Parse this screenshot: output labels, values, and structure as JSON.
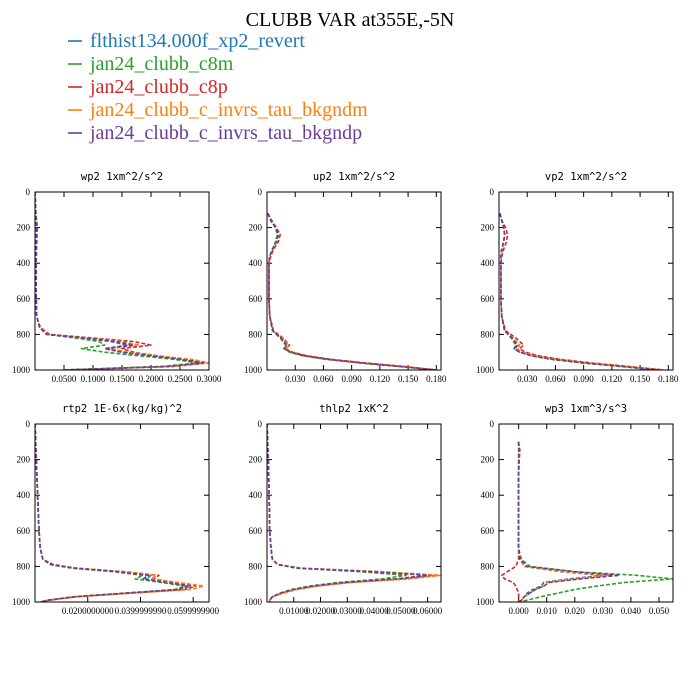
{
  "title": "CLUBB VAR at355E,-5N",
  "legend": [
    {
      "name": "flthist134.000f_xp2_revert",
      "color": "#1f77b4"
    },
    {
      "name": "jan24_clubb_c8m",
      "color": "#2ca02c"
    },
    {
      "name": "jan24_clubb_c8p",
      "color": "#d62728"
    },
    {
      "name": "jan24_clubb_c_invrs_tau_bkgndm",
      "color": "#ff7f0e"
    },
    {
      "name": "jan24_clubb_c_invrs_tau_bkgndp",
      "color": "#6a3d9a"
    }
  ],
  "chart_data": [
    {
      "type": "line",
      "title": "wp2  1xm^2/s^2",
      "xlim": [
        0,
        0.3
      ],
      "ylim": [
        1000,
        0
      ],
      "xticks": [
        0.05,
        0.1,
        0.15,
        0.2,
        0.25,
        0.3
      ],
      "xtick_labels": [
        "0.0500",
        "0.1000",
        "0.1500",
        "0.2000",
        "0.2500",
        "0.3000"
      ],
      "yticks": [
        0,
        200,
        400,
        600,
        800,
        1000
      ],
      "ytick_labels": [
        "0",
        "200",
        "400",
        "600",
        "800",
        "1000"
      ],
      "y": [
        0,
        100,
        200,
        300,
        400,
        500,
        600,
        700,
        760,
        800,
        820,
        840,
        860,
        880,
        900,
        920,
        940,
        960,
        980,
        1000
      ],
      "series": [
        {
          "name": "flthist134.000f_xp2_revert",
          "values": [
            0,
            0.001,
            0.003,
            0.002,
            0.002,
            0.002,
            0.002,
            0.003,
            0.008,
            0.02,
            0.08,
            0.13,
            0.16,
            0.12,
            0.15,
            0.2,
            0.25,
            0.29,
            0.23,
            0.05
          ]
        },
        {
          "name": "jan24_clubb_c8m",
          "values": [
            0,
            0.001,
            0.003,
            0.002,
            0.002,
            0.002,
            0.002,
            0.003,
            0.008,
            0.02,
            0.07,
            0.11,
            0.12,
            0.08,
            0.12,
            0.18,
            0.24,
            0.28,
            0.22,
            0.05
          ]
        },
        {
          "name": "jan24_clubb_c8p",
          "values": [
            0,
            0.001,
            0.004,
            0.003,
            0.002,
            0.002,
            0.002,
            0.003,
            0.009,
            0.025,
            0.1,
            0.17,
            0.2,
            0.15,
            0.17,
            0.21,
            0.26,
            0.3,
            0.24,
            0.05
          ]
        },
        {
          "name": "jan24_clubb_c_invrs_tau_bkgndm",
          "values": [
            0,
            0.001,
            0.003,
            0.002,
            0.002,
            0.002,
            0.002,
            0.003,
            0.008,
            0.022,
            0.09,
            0.15,
            0.18,
            0.13,
            0.16,
            0.21,
            0.27,
            0.3,
            0.24,
            0.05
          ]
        },
        {
          "name": "jan24_clubb_c_invrs_tau_bkgndp",
          "values": [
            0,
            0.001,
            0.003,
            0.002,
            0.002,
            0.002,
            0.002,
            0.003,
            0.008,
            0.02,
            0.085,
            0.14,
            0.17,
            0.12,
            0.15,
            0.2,
            0.25,
            0.29,
            0.23,
            0.05
          ]
        }
      ]
    },
    {
      "type": "line",
      "title": "up2  1xm^2/s^2",
      "xlim": [
        0,
        0.185
      ],
      "ylim": [
        1000,
        0
      ],
      "xticks": [
        0.03,
        0.06,
        0.09,
        0.12,
        0.15,
        0.18
      ],
      "xtick_labels": [
        "0.030",
        "0.060",
        "0.090",
        "0.120",
        "0.150",
        "0.180"
      ],
      "yticks": [
        0,
        200,
        400,
        600,
        800,
        1000
      ],
      "ytick_labels": [
        "0",
        "200",
        "400",
        "600",
        "800",
        "1000"
      ],
      "y": [
        120,
        160,
        200,
        240,
        280,
        320,
        360,
        400,
        500,
        600,
        700,
        780,
        820,
        860,
        880,
        900,
        920,
        940,
        960,
        980,
        1000
      ],
      "series": [
        {
          "name": "flthist134.000f_xp2_revert",
          "values": [
            0.001,
            0.004,
            0.009,
            0.012,
            0.01,
            0.006,
            0.003,
            0.002,
            0.002,
            0.002,
            0.003,
            0.006,
            0.015,
            0.022,
            0.019,
            0.025,
            0.04,
            0.065,
            0.1,
            0.14,
            0.18
          ]
        },
        {
          "name": "jan24_clubb_c8m",
          "values": [
            0.001,
            0.004,
            0.009,
            0.011,
            0.009,
            0.006,
            0.003,
            0.002,
            0.002,
            0.002,
            0.003,
            0.006,
            0.014,
            0.02,
            0.018,
            0.024,
            0.038,
            0.062,
            0.098,
            0.14,
            0.18
          ]
        },
        {
          "name": "jan24_clubb_c8p",
          "values": [
            0.001,
            0.005,
            0.01,
            0.014,
            0.012,
            0.007,
            0.004,
            0.002,
            0.002,
            0.002,
            0.003,
            0.007,
            0.017,
            0.024,
            0.02,
            0.027,
            0.043,
            0.068,
            0.104,
            0.145,
            0.18
          ]
        },
        {
          "name": "jan24_clubb_c_invrs_tau_bkgndm",
          "values": [
            0.001,
            0.004,
            0.009,
            0.012,
            0.01,
            0.006,
            0.003,
            0.002,
            0.002,
            0.002,
            0.003,
            0.006,
            0.016,
            0.023,
            0.02,
            0.026,
            0.042,
            0.067,
            0.103,
            0.145,
            0.18
          ]
        },
        {
          "name": "jan24_clubb_c_invrs_tau_bkgndp",
          "values": [
            0.001,
            0.004,
            0.009,
            0.012,
            0.01,
            0.006,
            0.003,
            0.002,
            0.002,
            0.002,
            0.003,
            0.006,
            0.015,
            0.021,
            0.018,
            0.025,
            0.04,
            0.064,
            0.1,
            0.14,
            0.18
          ]
        }
      ]
    },
    {
      "type": "line",
      "title": "vp2  1xm^2/s^2",
      "xlim": [
        0,
        0.185
      ],
      "ylim": [
        1000,
        0
      ],
      "xticks": [
        0.03,
        0.06,
        0.09,
        0.12,
        0.15,
        0.18
      ],
      "xtick_labels": [
        "0.030",
        "0.060",
        "0.090",
        "0.120",
        "0.150",
        "0.180"
      ],
      "yticks": [
        0,
        200,
        400,
        600,
        800,
        1000
      ],
      "ytick_labels": [
        "0",
        "200",
        "400",
        "600",
        "800",
        "1000"
      ],
      "y": [
        120,
        160,
        200,
        240,
        280,
        320,
        360,
        400,
        500,
        600,
        700,
        780,
        820,
        860,
        880,
        900,
        920,
        940,
        960,
        980,
        1000
      ],
      "series": [
        {
          "name": "flthist134.000f_xp2_revert",
          "values": [
            0.001,
            0.003,
            0.005,
            0.006,
            0.005,
            0.003,
            0.002,
            0.002,
            0.002,
            0.002,
            0.003,
            0.006,
            0.014,
            0.02,
            0.017,
            0.023,
            0.036,
            0.058,
            0.09,
            0.13,
            0.17
          ]
        },
        {
          "name": "jan24_clubb_c8m",
          "values": [
            0.001,
            0.003,
            0.005,
            0.006,
            0.005,
            0.003,
            0.002,
            0.002,
            0.002,
            0.002,
            0.003,
            0.006,
            0.013,
            0.018,
            0.016,
            0.022,
            0.034,
            0.055,
            0.088,
            0.128,
            0.17
          ]
        },
        {
          "name": "jan24_clubb_c8p",
          "values": [
            0.001,
            0.003,
            0.007,
            0.009,
            0.008,
            0.005,
            0.003,
            0.002,
            0.002,
            0.002,
            0.003,
            0.007,
            0.018,
            0.026,
            0.022,
            0.028,
            0.042,
            0.065,
            0.098,
            0.138,
            0.175
          ]
        },
        {
          "name": "jan24_clubb_c_invrs_tau_bkgndm",
          "values": [
            0.001,
            0.003,
            0.005,
            0.006,
            0.005,
            0.003,
            0.002,
            0.002,
            0.002,
            0.002,
            0.003,
            0.006,
            0.015,
            0.022,
            0.019,
            0.025,
            0.039,
            0.062,
            0.095,
            0.135,
            0.175
          ]
        },
        {
          "name": "jan24_clubb_c_invrs_tau_bkgndp",
          "values": [
            0.001,
            0.003,
            0.005,
            0.006,
            0.005,
            0.003,
            0.002,
            0.002,
            0.002,
            0.002,
            0.003,
            0.006,
            0.014,
            0.019,
            0.016,
            0.022,
            0.035,
            0.057,
            0.09,
            0.13,
            0.17
          ]
        }
      ]
    },
    {
      "type": "line",
      "title": "rtp2  1E-6x(kg/kg)^2",
      "xlim": [
        0,
        0.066
      ],
      "ylim": [
        1000,
        0
      ],
      "xticks": [
        0.02,
        0.04,
        0.06
      ],
      "xtick_labels": [
        "0.0200000000",
        "0.0399999990",
        "0.0599999900"
      ],
      "yticks": [
        0,
        200,
        400,
        600,
        800,
        1000
      ],
      "ytick_labels": [
        "0",
        "200",
        "400",
        "600",
        "800",
        "1000"
      ],
      "y": [
        0,
        200,
        400,
        600,
        700,
        760,
        790,
        810,
        830,
        850,
        870,
        890,
        910,
        930,
        950,
        970,
        990,
        1000
      ],
      "series": [
        {
          "name": "flthist134.000f_xp2_revert",
          "values": [
            0,
            0.0005,
            0.001,
            0.0015,
            0.002,
            0.003,
            0.006,
            0.015,
            0.032,
            0.044,
            0.042,
            0.05,
            0.059,
            0.055,
            0.035,
            0.015,
            0.005,
            0.002
          ]
        },
        {
          "name": "jan24_clubb_c8m",
          "values": [
            0,
            0.0005,
            0.001,
            0.0015,
            0.002,
            0.003,
            0.006,
            0.014,
            0.03,
            0.041,
            0.038,
            0.048,
            0.057,
            0.053,
            0.034,
            0.015,
            0.005,
            0.002
          ]
        },
        {
          "name": "jan24_clubb_c8p",
          "values": [
            0,
            0.0005,
            0.001,
            0.0015,
            0.002,
            0.003,
            0.007,
            0.016,
            0.034,
            0.047,
            0.045,
            0.053,
            0.061,
            0.057,
            0.036,
            0.016,
            0.005,
            0.002
          ]
        },
        {
          "name": "jan24_clubb_c_invrs_tau_bkgndm",
          "values": [
            0,
            0.0005,
            0.001,
            0.0015,
            0.002,
            0.003,
            0.006,
            0.016,
            0.033,
            0.046,
            0.044,
            0.054,
            0.064,
            0.059,
            0.037,
            0.016,
            0.005,
            0.002
          ]
        },
        {
          "name": "jan24_clubb_c_invrs_tau_bkgndp",
          "values": [
            0,
            0.0005,
            0.001,
            0.0015,
            0.002,
            0.003,
            0.006,
            0.015,
            0.031,
            0.043,
            0.041,
            0.05,
            0.058,
            0.054,
            0.035,
            0.015,
            0.005,
            0.002
          ]
        }
      ]
    },
    {
      "type": "line",
      "title": "thlp2  1xK^2",
      "xlim": [
        0,
        0.065
      ],
      "ylim": [
        1000,
        0
      ],
      "xticks": [
        0.01,
        0.02,
        0.03,
        0.04,
        0.05,
        0.06
      ],
      "xtick_labels": [
        "0.01000",
        "0.02000",
        "0.03000",
        "0.04000",
        "0.05000",
        "0.06000"
      ],
      "yticks": [
        0,
        200,
        400,
        600,
        800,
        1000
      ],
      "ytick_labels": [
        "0",
        "200",
        "400",
        "600",
        "800",
        "1000"
      ],
      "y": [
        0,
        200,
        400,
        600,
        700,
        760,
        790,
        810,
        830,
        850,
        870,
        890,
        910,
        930,
        950,
        970,
        990,
        1000
      ],
      "series": [
        {
          "name": "flthist134.000f_xp2_revert",
          "values": [
            0,
            0.0005,
            0.0008,
            0.001,
            0.0015,
            0.002,
            0.004,
            0.012,
            0.04,
            0.062,
            0.05,
            0.03,
            0.018,
            0.01,
            0.005,
            0.002,
            0.001,
            0.001
          ]
        },
        {
          "name": "jan24_clubb_c8m",
          "values": [
            0,
            0.0005,
            0.0008,
            0.001,
            0.0015,
            0.002,
            0.004,
            0.011,
            0.035,
            0.052,
            0.043,
            0.027,
            0.016,
            0.009,
            0.005,
            0.002,
            0.001,
            0.001
          ]
        },
        {
          "name": "jan24_clubb_c8p",
          "values": [
            0,
            0.0005,
            0.0008,
            0.001,
            0.0015,
            0.002,
            0.004,
            0.013,
            0.042,
            0.064,
            0.052,
            0.031,
            0.019,
            0.011,
            0.006,
            0.002,
            0.001,
            0.001
          ]
        },
        {
          "name": "jan24_clubb_c_invrs_tau_bkgndm",
          "values": [
            0,
            0.0005,
            0.0008,
            0.001,
            0.0015,
            0.002,
            0.004,
            0.013,
            0.043,
            0.065,
            0.053,
            0.032,
            0.019,
            0.011,
            0.006,
            0.002,
            0.001,
            0.001
          ]
        },
        {
          "name": "jan24_clubb_c_invrs_tau_bkgndp",
          "values": [
            0,
            0.0005,
            0.0008,
            0.001,
            0.0015,
            0.002,
            0.004,
            0.012,
            0.039,
            0.06,
            0.048,
            0.029,
            0.017,
            0.01,
            0.005,
            0.002,
            0.001,
            0.001
          ]
        }
      ]
    },
    {
      "type": "line",
      "title": "wp3  1xm^3/s^3",
      "xlim": [
        -0.007,
        0.055
      ],
      "ylim": [
        1000,
        0
      ],
      "xticks": [
        0,
        0.01,
        0.02,
        0.03,
        0.04,
        0.05
      ],
      "xtick_labels": [
        "0.000",
        "0.010",
        "0.020",
        "0.030",
        "0.040",
        "0.050"
      ],
      "yticks": [
        0,
        200,
        400,
        600,
        800,
        1000
      ],
      "ytick_labels": [
        "0",
        "200",
        "400",
        "600",
        "800",
        "1000"
      ],
      "y": [
        100,
        150,
        200,
        300,
        400,
        500,
        600,
        700,
        760,
        800,
        830,
        850,
        870,
        890,
        910,
        930,
        950,
        970,
        990,
        1000
      ],
      "series": [
        {
          "name": "flthist134.000f_xp2_revert",
          "values": [
            0,
            0.0002,
            0.0001,
            0,
            0,
            0,
            0,
            0,
            0.0005,
            0.002,
            0.015,
            0.03,
            0.018,
            0.009,
            0.008,
            0.005,
            0.003,
            0.002,
            0.001,
            0
          ]
        },
        {
          "name": "jan24_clubb_c8m",
          "values": [
            0,
            0.0005,
            0.0002,
            0,
            0,
            0,
            0,
            0,
            0.001,
            0.004,
            0.02,
            0.042,
            0.055,
            0.038,
            0.028,
            0.02,
            0.014,
            0.008,
            0.003,
            0
          ]
        },
        {
          "name": "jan24_clubb_c8p",
          "values": [
            0,
            0,
            0,
            0,
            0,
            0,
            0,
            0,
            0,
            -0.001,
            -0.004,
            -0.006,
            -0.005,
            -0.002,
            -0.001,
            -0.0005,
            0,
            0,
            0,
            0
          ]
        },
        {
          "name": "jan24_clubb_c_invrs_tau_bkgndm",
          "values": [
            0,
            0.0002,
            0.0001,
            0,
            0,
            0,
            0,
            0,
            0.0005,
            0.002,
            0.016,
            0.032,
            0.02,
            0.01,
            0.009,
            0.006,
            0.004,
            0.002,
            0.001,
            0
          ]
        },
        {
          "name": "jan24_clubb_c_invrs_tau_bkgndp",
          "values": [
            0,
            0.0002,
            0.0001,
            0,
            0,
            0,
            0,
            0,
            0.0005,
            0.003,
            0.02,
            0.036,
            0.022,
            0.011,
            0.009,
            0.006,
            0.004,
            0.002,
            0.001,
            0
          ]
        }
      ]
    }
  ]
}
